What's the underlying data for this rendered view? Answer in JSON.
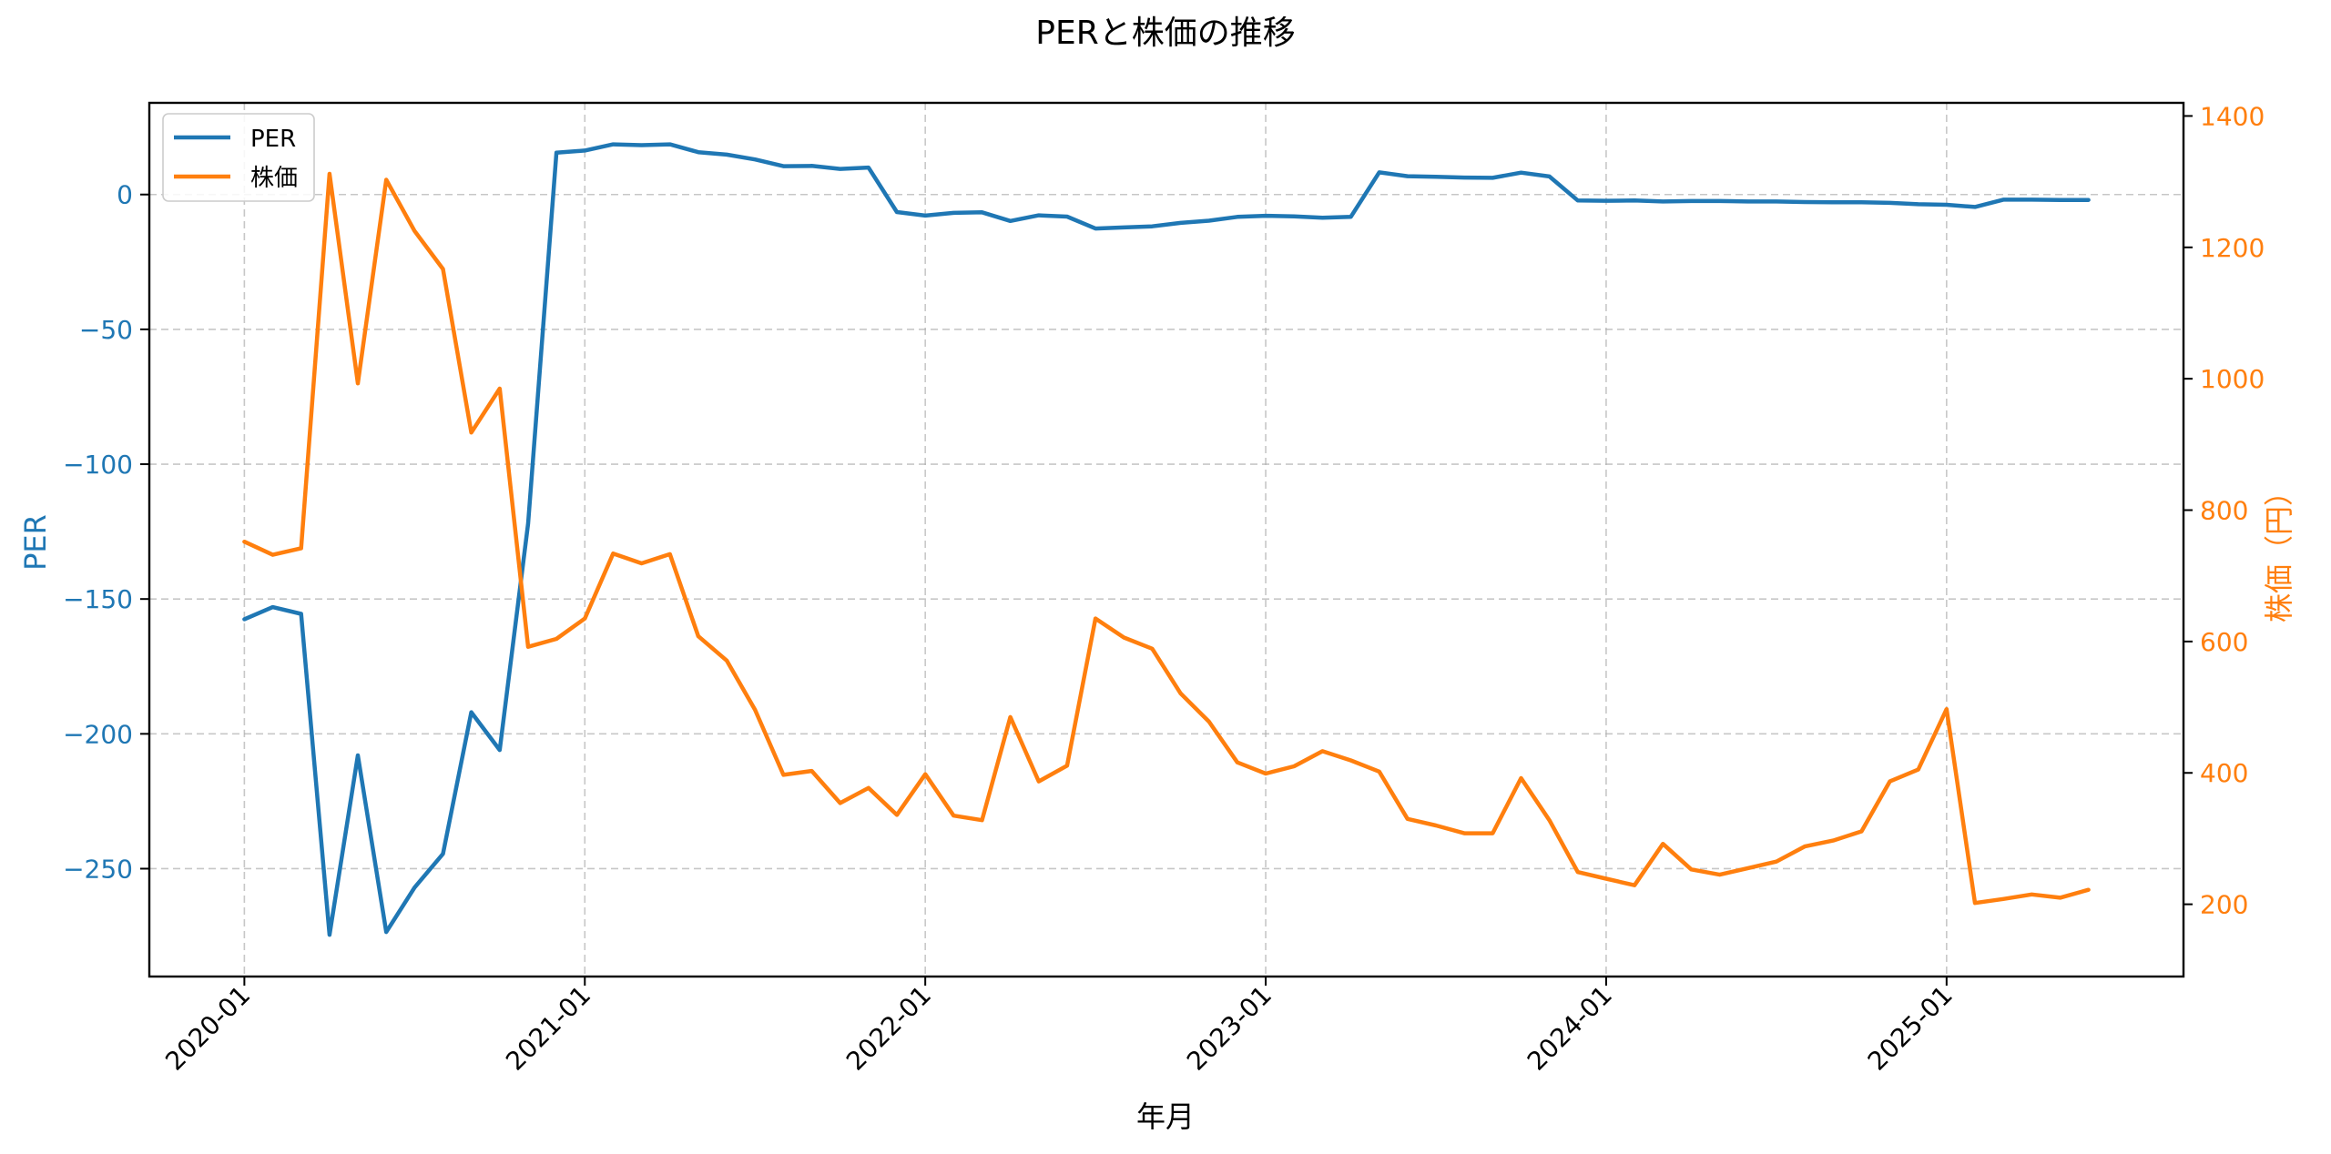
{
  "chart_data": {
    "type": "line",
    "title": "PERと株価の推移",
    "xlabel": "年月",
    "ylabel_left": "PER",
    "ylabel_right": "株価（円）",
    "x_ticks": [
      "2020-01",
      "2021-01",
      "2022-01",
      "2023-01",
      "2024-01",
      "2025-01"
    ],
    "y_left_ticks": [
      0,
      -50,
      -100,
      -150,
      -200,
      -250
    ],
    "y_left_tick_labels": [
      "0",
      "−50",
      "−100",
      "−150",
      "−200",
      "−250"
    ],
    "y_right_ticks": [
      200,
      400,
      600,
      800,
      1000,
      1200,
      1400
    ],
    "y_right_tick_labels": [
      "200",
      "400",
      "600",
      "800",
      "1000",
      "1200",
      "1400"
    ],
    "ylim_left": [
      -290,
      34
    ],
    "ylim_right": [
      90,
      1420
    ],
    "x_months_range": [
      -3.35,
      68.35
    ],
    "grid": true,
    "legend_position": "top-left",
    "colors": {
      "per": "#1f77b4",
      "price": "#ff7f0e"
    },
    "series": [
      {
        "name": "PER",
        "axis": "left",
        "color": "#1f77b4",
        "x": [
          0,
          1,
          2,
          3,
          4,
          5,
          6,
          7,
          8,
          9,
          10,
          11,
          12,
          13,
          14,
          15,
          16,
          17,
          18,
          19,
          20,
          21,
          22,
          23,
          24,
          25,
          26,
          27,
          28,
          29,
          30,
          31,
          32,
          33,
          34,
          35,
          36,
          37,
          38,
          39,
          40,
          41,
          42,
          43,
          44,
          45,
          46,
          47,
          48,
          49,
          50,
          51,
          52,
          53,
          54,
          55,
          56,
          57,
          58,
          59,
          60,
          61,
          62,
          63,
          64,
          65
        ],
        "values": [
          -157.5,
          -153,
          -155.5,
          -274.5,
          -208,
          -273.5,
          -257,
          -244.5,
          -192,
          -206,
          -122,
          15.5,
          16.3,
          18.6,
          18.3,
          18.6,
          15.7,
          14.8,
          13,
          10.5,
          10.6,
          9.5,
          10,
          -6.5,
          -7.8,
          -6.8,
          -6.6,
          -9.8,
          -7.7,
          -8.2,
          -12.6,
          -12.2,
          -11.8,
          -10.5,
          -9.7,
          -8.3,
          -7.9,
          -8.1,
          -8.6,
          -8.3,
          8.2,
          6.8,
          6.6,
          6.3,
          6.2,
          8.1,
          6.7,
          -2.2,
          -2.3,
          -2.2,
          -2.6,
          -2.4,
          -2.4,
          -2.6,
          -2.6,
          -2.8,
          -2.9,
          -2.9,
          -3.1,
          -3.6,
          -3.8,
          -4.6,
          -1.9,
          -1.9,
          -2,
          -2
        ]
      },
      {
        "name": "株価",
        "axis": "right",
        "color": "#ff7f0e",
        "x": [
          0,
          1,
          2,
          3,
          4,
          5,
          6,
          7,
          8,
          9,
          10,
          11,
          12,
          13,
          14,
          15,
          16,
          17,
          18,
          19,
          20,
          21,
          22,
          23,
          24,
          25,
          26,
          27,
          28,
          29,
          30,
          31,
          32,
          33,
          34,
          35,
          36,
          37,
          38,
          39,
          40,
          41,
          42,
          43,
          44,
          45,
          46,
          47,
          48,
          49,
          50,
          51,
          52,
          53,
          54,
          55,
          56,
          57,
          58,
          59,
          60,
          61,
          62,
          63,
          64,
          65
        ],
        "values": [
          752,
          732,
          742,
          1312,
          993,
          1303,
          1225,
          1167,
          918,
          985,
          592,
          604,
          635,
          734,
          719,
          733,
          608,
          571,
          496,
          397,
          403,
          354,
          377,
          336,
          398,
          335,
          328,
          485,
          387,
          411,
          635,
          606,
          589,
          521,
          478,
          416,
          399,
          410,
          433,
          419,
          402,
          330,
          320,
          308,
          308,
          392,
          328,
          249,
          239,
          229,
          292,
          253,
          245,
          255,
          265,
          288,
          297,
          311,
          387,
          405,
          497,
          202,
          208,
          215,
          210,
          222
        ]
      }
    ]
  }
}
